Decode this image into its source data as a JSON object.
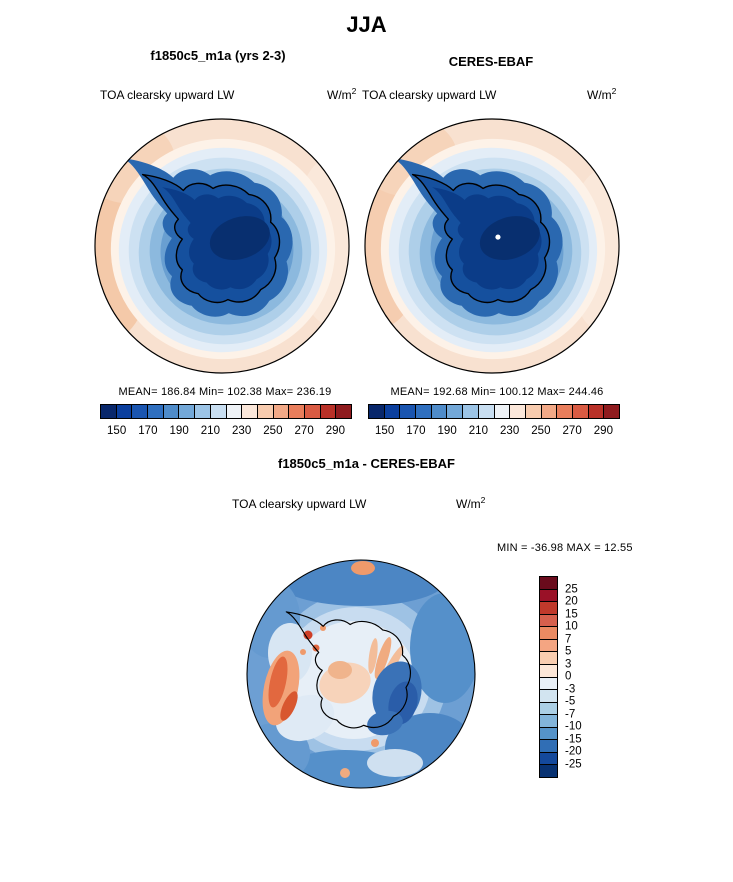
{
  "page": {
    "title": "JJA"
  },
  "top": {
    "model": {
      "title": "f1850c5_m1a (yrs 2-3)",
      "subtitle": "TOA clearsky upward LW",
      "units_base": "W/m",
      "units_exp": "2",
      "stats": "MEAN= 186.84  Min= 102.38  Max= 236.19"
    },
    "obs": {
      "title": "CERES-EBAF",
      "subtitle": "TOA clearsky upward LW",
      "units_base": "W/m",
      "units_exp": "2",
      "stats": "MEAN= 192.68  Min= 100.12  Max= 244.46"
    },
    "colorbar_ticks": [
      "150",
      "170",
      "190",
      "210",
      "230",
      "250",
      "270",
      "290"
    ]
  },
  "bottom": {
    "title": "f1850c5_m1a - CERES-EBAF",
    "subtitle": "TOA clearsky upward LW",
    "units_base": "W/m",
    "units_exp": "2",
    "minmax": "MIN = -36.98 MAX =  12.55",
    "colorbar_labels": [
      "25",
      "20",
      "15",
      "10",
      "7",
      "5",
      "3",
      "0",
      "-3",
      "-5",
      "-7",
      "-10",
      "-15",
      "-20",
      "-25"
    ]
  },
  "colors": {
    "top_colorbar": [
      "#08276b",
      "#0b3f9e",
      "#1a55b0",
      "#2f6fbf",
      "#4f8cca",
      "#73a8d8",
      "#9cc4e6",
      "#c8def1",
      "#eef2f6",
      "#fbe7da",
      "#f7cbae",
      "#f2a987",
      "#e97e5c",
      "#d95b43",
      "#b93128",
      "#8f1b1e"
    ],
    "diff_colorbar": [
      "#6a0b1c",
      "#9a1127",
      "#c0392b",
      "#d6604d",
      "#ea8a62",
      "#f4a582",
      "#f9cdb0",
      "#fde7d8",
      "#e9f0f7",
      "#d2e4f0",
      "#abcfe5",
      "#82b4da",
      "#5593c9",
      "#306eb5",
      "#14499c",
      "#083272"
    ]
  },
  "chart_data": [
    {
      "type": "heatmap",
      "subtype": "polar_contour_map",
      "panel": "model",
      "season": "JJA",
      "title": "f1850c5_m1a (yrs 2-3)",
      "variable": "TOA clearsky upward LW",
      "units": "W/m2",
      "stats": {
        "mean": 186.84,
        "min": 102.38,
        "max": 236.19
      },
      "colorbar_ticks": [
        150,
        170,
        190,
        210,
        230,
        250,
        270,
        290
      ],
      "palette": "blue_to_red",
      "legend_position": "below"
    },
    {
      "type": "heatmap",
      "subtype": "polar_contour_map",
      "panel": "observation",
      "season": "JJA",
      "title": "CERES-EBAF",
      "variable": "TOA clearsky upward LW",
      "units": "W/m2",
      "stats": {
        "mean": 192.68,
        "min": 100.12,
        "max": 244.46
      },
      "colorbar_ticks": [
        150,
        170,
        190,
        210,
        230,
        250,
        270,
        290
      ],
      "palette": "blue_to_red",
      "legend_position": "below"
    },
    {
      "type": "heatmap",
      "subtype": "polar_contour_map",
      "panel": "difference",
      "season": "JJA",
      "title": "f1850c5_m1a - CERES-EBAF",
      "variable": "TOA clearsky upward LW",
      "units": "W/m2",
      "stats": {
        "min": -36.98,
        "max": 12.55
      },
      "colorbar_levels": [
        25,
        20,
        15,
        10,
        7,
        5,
        3,
        0,
        -3,
        -5,
        -7,
        -10,
        -15,
        -20,
        -25
      ],
      "palette": "red_to_blue",
      "legend_position": "right"
    }
  ]
}
